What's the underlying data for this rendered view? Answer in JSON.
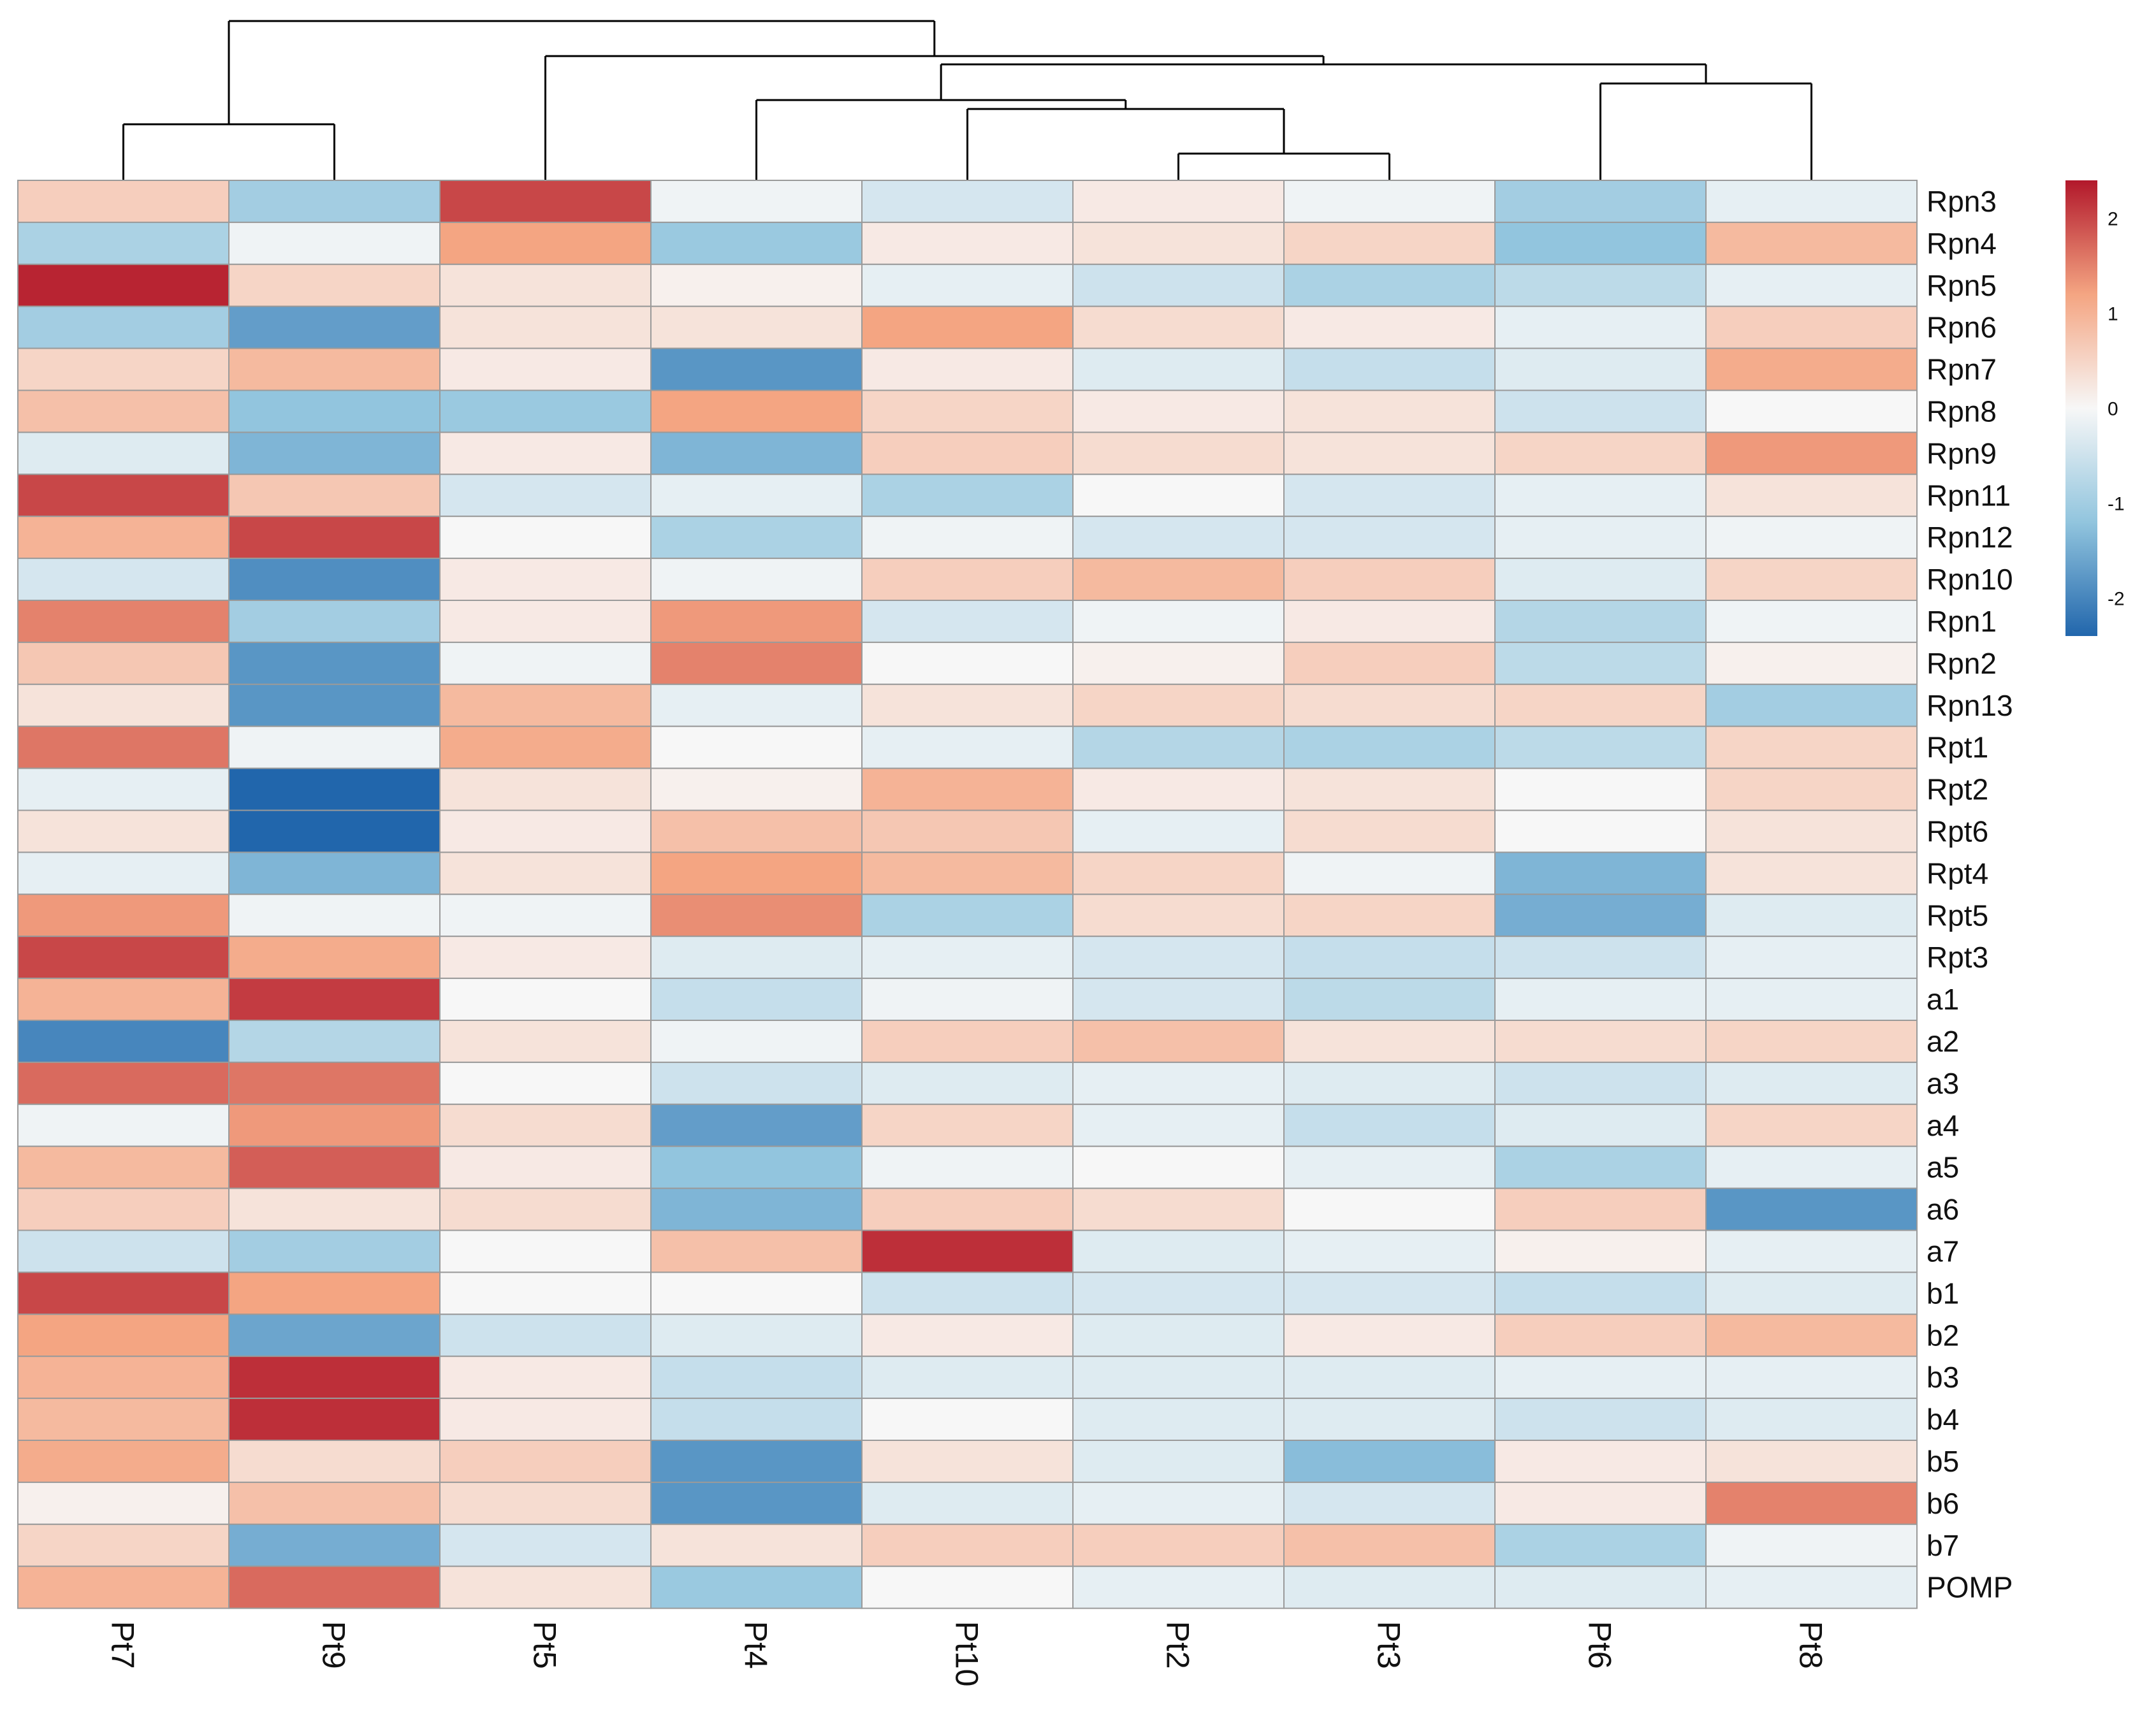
{
  "chart_data": {
    "type": "heatmap",
    "columns": [
      "Pt7",
      "Pt9",
      "Pt5",
      "Pt4",
      "Pt10",
      "Pt2",
      "Pt3",
      "Pt6",
      "Pt8"
    ],
    "rows": [
      "Rpn3",
      "Rpn4",
      "Rpn5",
      "Rpn6",
      "Rpn7",
      "Rpn8",
      "Rpn9",
      "Rpn11",
      "Rpn12",
      "Rpn10",
      "Rpn1",
      "Rpn2",
      "Rpn13",
      "Rpt1",
      "Rpt2",
      "Rpt6",
      "Rpt4",
      "Rpt5",
      "Rpt3",
      "a1",
      "a2",
      "a3",
      "a4",
      "a5",
      "a6",
      "a7",
      "b1",
      "b2",
      "b3",
      "b4",
      "b5",
      "b6",
      "b7",
      "POMP"
    ],
    "values": [
      [
        0.6,
        -1.0,
        2.0,
        -0.1,
        -0.4,
        0.2,
        -0.1,
        -1.0,
        -0.2
      ],
      [
        -0.9,
        -0.1,
        1.2,
        -1.1,
        0.2,
        0.3,
        0.5,
        -1.2,
        0.9
      ],
      [
        2.3,
        0.5,
        0.3,
        0.1,
        -0.2,
        -0.5,
        -0.9,
        -0.7,
        -0.2
      ],
      [
        -1.0,
        -1.7,
        0.3,
        0.3,
        1.2,
        0.4,
        0.2,
        -0.2,
        0.6
      ],
      [
        0.5,
        0.9,
        0.2,
        -1.8,
        0.2,
        -0.3,
        -0.6,
        -0.3,
        1.1
      ],
      [
        0.8,
        -1.2,
        -1.1,
        1.2,
        0.5,
        0.2,
        0.3,
        -0.5,
        0.0
      ],
      [
        -0.3,
        -1.4,
        0.2,
        -1.4,
        0.6,
        0.4,
        0.3,
        0.5,
        1.3
      ],
      [
        2.0,
        0.7,
        -0.4,
        -0.2,
        -0.9,
        0.0,
        -0.4,
        -0.2,
        0.3
      ],
      [
        1.0,
        2.0,
        0.0,
        -0.9,
        -0.1,
        -0.4,
        -0.4,
        -0.2,
        -0.1
      ],
      [
        -0.4,
        -1.9,
        0.2,
        -0.1,
        0.6,
        0.9,
        0.6,
        -0.3,
        0.5
      ],
      [
        1.5,
        -1.0,
        0.2,
        1.3,
        -0.4,
        -0.1,
        0.2,
        -0.8,
        -0.1
      ],
      [
        0.7,
        -1.8,
        -0.1,
        1.5,
        0.0,
        0.1,
        0.6,
        -0.7,
        0.1
      ],
      [
        0.3,
        -1.8,
        0.9,
        -0.2,
        0.3,
        0.5,
        0.4,
        0.5,
        -1.0
      ],
      [
        1.6,
        -0.1,
        1.1,
        0.0,
        -0.2,
        -0.8,
        -0.9,
        -0.7,
        0.5
      ],
      [
        -0.2,
        -2.4,
        0.3,
        0.1,
        1.0,
        0.2,
        0.3,
        0.0,
        0.5
      ],
      [
        0.3,
        -2.4,
        0.2,
        0.8,
        0.7,
        -0.2,
        0.4,
        0.0,
        0.3
      ],
      [
        -0.2,
        -1.4,
        0.3,
        1.2,
        0.9,
        0.5,
        -0.1,
        -1.4,
        0.3
      ],
      [
        1.3,
        -0.1,
        -0.1,
        1.4,
        -0.9,
        0.4,
        0.5,
        -1.5,
        -0.3
      ],
      [
        2.0,
        1.1,
        0.2,
        -0.3,
        -0.2,
        -0.4,
        -0.6,
        -0.5,
        -0.2
      ],
      [
        1.0,
        2.1,
        0.0,
        -0.6,
        -0.1,
        -0.4,
        -0.7,
        -0.2,
        -0.2
      ],
      [
        -2.0,
        -0.8,
        0.3,
        -0.1,
        0.6,
        0.8,
        0.3,
        0.4,
        0.5
      ],
      [
        1.7,
        1.6,
        0.0,
        -0.5,
        -0.3,
        -0.2,
        -0.3,
        -0.5,
        -0.3
      ],
      [
        -0.1,
        1.3,
        0.4,
        -1.7,
        0.5,
        -0.2,
        -0.6,
        -0.3,
        0.5
      ],
      [
        0.9,
        1.8,
        0.2,
        -1.2,
        -0.1,
        0.0,
        -0.2,
        -0.9,
        -0.2
      ],
      [
        0.6,
        0.3,
        0.4,
        -1.4,
        0.6,
        0.4,
        0.0,
        0.6,
        -1.8
      ],
      [
        -0.5,
        -1.0,
        0.0,
        0.8,
        2.2,
        -0.3,
        -0.2,
        0.1,
        -0.2
      ],
      [
        2.0,
        1.2,
        0.0,
        0.0,
        -0.5,
        -0.4,
        -0.4,
        -0.6,
        -0.3
      ],
      [
        1.2,
        -1.6,
        -0.5,
        -0.3,
        0.2,
        -0.3,
        0.2,
        0.6,
        0.9
      ],
      [
        1.0,
        2.2,
        0.2,
        -0.6,
        -0.3,
        -0.3,
        -0.3,
        -0.2,
        -0.2
      ],
      [
        0.9,
        2.2,
        0.2,
        -0.6,
        0.0,
        -0.3,
        -0.3,
        -0.5,
        -0.3
      ],
      [
        1.1,
        0.4,
        0.6,
        -1.8,
        0.3,
        -0.3,
        -1.3,
        0.2,
        0.3
      ],
      [
        0.1,
        0.8,
        0.4,
        -1.8,
        -0.3,
        -0.2,
        -0.4,
        0.2,
        1.5
      ],
      [
        0.5,
        -1.5,
        -0.4,
        0.3,
        0.6,
        0.6,
        0.8,
        -0.9,
        -0.1
      ],
      [
        1.0,
        1.7,
        0.3,
        -1.1,
        0.0,
        -0.2,
        -0.3,
        -0.3,
        -0.2
      ]
    ],
    "colorbar": {
      "ticks": [
        "2",
        "1",
        "0",
        "-1",
        "-2"
      ],
      "tick_values": [
        2,
        1,
        0,
        -1,
        -2
      ],
      "range": [
        -2.4,
        2.4
      ],
      "colors": {
        "low": "#2166ac",
        "mid_low": "#92c5de",
        "mid": "#f7f7f7",
        "mid_high": "#f4a582",
        "high": "#b2182b"
      }
    },
    "column_dendrogram": {
      "leaf_order": [
        "Pt7",
        "Pt9",
        "Pt5",
        "Pt4",
        "Pt10",
        "Pt2",
        "Pt3",
        "Pt6",
        "Pt8"
      ],
      "merges": [
        [
          "Pt7",
          "Pt9"
        ],
        [
          "Pt2",
          "Pt3"
        ],
        [
          "Pt10",
          "Pt2+Pt3"
        ],
        [
          "Pt4",
          "Pt10+Pt2+Pt3"
        ],
        [
          "Pt6",
          "Pt8"
        ],
        [
          "Pt4+Pt10+Pt2+Pt3",
          "Pt6+Pt8"
        ],
        [
          "Pt5",
          "Pt4+Pt10+Pt2+Pt3+Pt6+Pt8"
        ],
        [
          "Pt7+Pt9",
          "Pt5+Pt4+Pt10+Pt2+Pt3+Pt6+Pt8"
        ]
      ]
    },
    "legend_position": "top-right"
  }
}
